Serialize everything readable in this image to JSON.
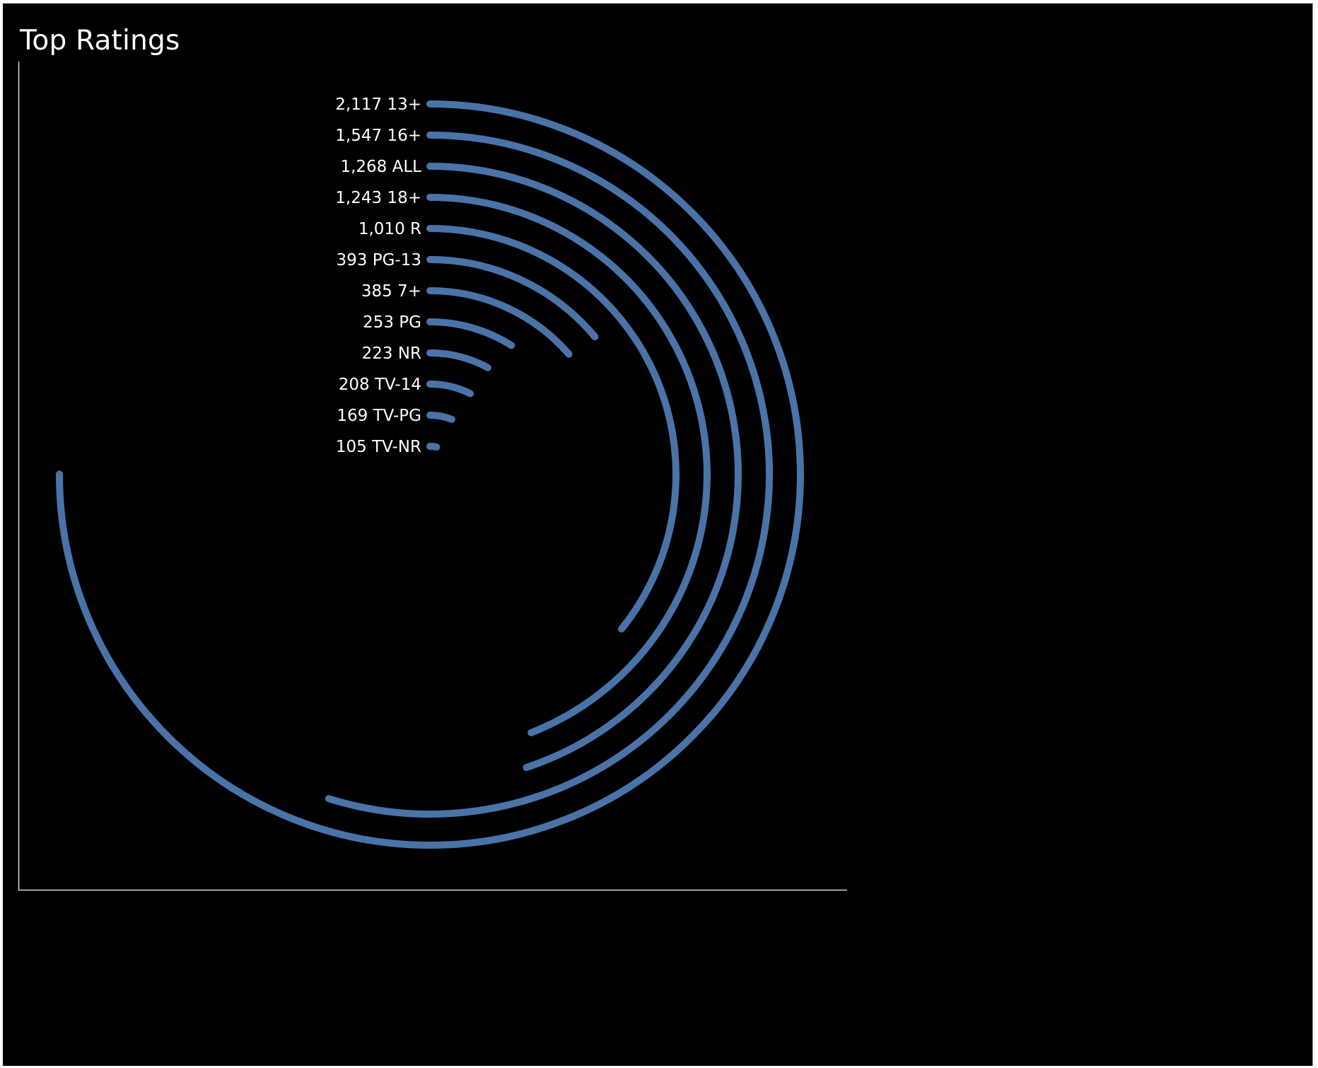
{
  "title": "Top Ratings",
  "colors": {
    "background": "#000000",
    "bar": "#4a73a8",
    "text": "#ffffff",
    "axis": "#d9d9d9"
  },
  "chart_data": {
    "type": "radial-bar",
    "title": "Top Ratings",
    "full_circle_value": 2822,
    "categories": [
      "13+",
      "16+",
      "ALL",
      "18+",
      "R",
      "PG-13",
      "7+",
      "PG",
      "NR",
      "TV-14",
      "TV-PG",
      "TV-NR"
    ],
    "values": [
      2117,
      1547,
      1268,
      1243,
      1010,
      393,
      385,
      253,
      223,
      208,
      169,
      105
    ],
    "labels": [
      "2,117 13+",
      "1,547 16+",
      "1,268 ALL",
      "1,243 18+",
      "1,010 R",
      "393 PG-13",
      "385 7+",
      "253 PG",
      "223 NR",
      "208 TV-14",
      "169 TV-PG",
      "105 TV-NR"
    ],
    "legend": "none",
    "grid": false
  }
}
